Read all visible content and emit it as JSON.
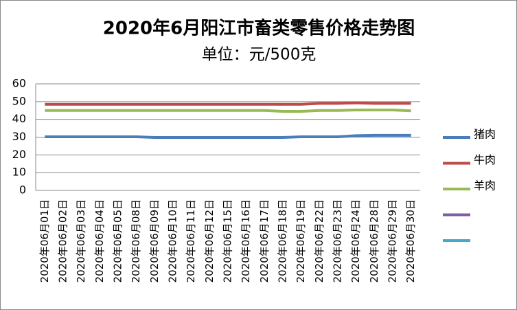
{
  "chart_data": {
    "type": "line",
    "title": "2020年6月阳江市畜类零售价格走势图",
    "subtitle": "单位：元/500克",
    "categories": [
      "2020年06月01日",
      "2020年06月02日",
      "2020年06月03日",
      "2020年06月04日",
      "2020年06月05日",
      "2020年06月08日",
      "2020年06月09日",
      "2020年06月10日",
      "2020年06月11日",
      "2020年06月12日",
      "2020年06月15日",
      "2020年06月16日",
      "2020年06月17日",
      "2020年06月18日",
      "2020年06月19日",
      "2020年06月22日",
      "2020年06月23日",
      "2020年06月24日",
      "2020年06月28日",
      "2020年06月29日",
      "2020年06月30日"
    ],
    "series": [
      {
        "name": "猪肉",
        "color": "#4a7ebb",
        "values": [
          30.2,
          30.2,
          30.2,
          30.2,
          30.2,
          30.2,
          29.8,
          29.8,
          29.8,
          29.8,
          29.8,
          29.8,
          29.8,
          29.8,
          30.2,
          30.2,
          30.2,
          30.8,
          31,
          31,
          31
        ]
      },
      {
        "name": "牛肉",
        "color": "#be4b48",
        "values": [
          48.5,
          48.5,
          48.5,
          48.5,
          48.5,
          48.5,
          48.5,
          48.5,
          48.5,
          48.5,
          48.5,
          48.5,
          48.5,
          48.5,
          48.5,
          49,
          49,
          49.3,
          49,
          49,
          49
        ]
      },
      {
        "name": "羊肉",
        "color": "#98b954",
        "values": [
          45,
          45,
          45,
          45,
          45,
          45,
          45,
          45,
          45,
          45,
          45,
          45,
          45,
          44.5,
          44.5,
          45,
          45,
          45.3,
          45.3,
          45.3,
          44.8
        ]
      },
      {
        "name": null,
        "color": "#7d60a0",
        "values": [
          null,
          null,
          null,
          null,
          null,
          null,
          null,
          null,
          null,
          null,
          null,
          null,
          null,
          null,
          null,
          null,
          null,
          null,
          null,
          null,
          null
        ]
      },
      {
        "name": null,
        "color": "#46aac5",
        "values": [
          null,
          null,
          null,
          null,
          null,
          null,
          null,
          null,
          null,
          null,
          null,
          null,
          null,
          null,
          null,
          null,
          null,
          null,
          null,
          null,
          null
        ]
      }
    ],
    "ylim": [
      0,
      60
    ],
    "yticks": [
      0,
      10,
      20,
      30,
      40,
      50,
      60
    ],
    "grid": true,
    "legend": "right"
  }
}
